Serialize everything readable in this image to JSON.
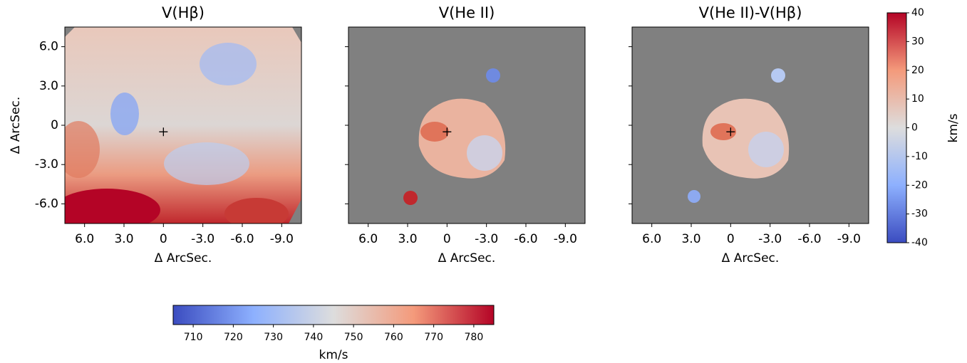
{
  "chart_data": [
    {
      "type": "heatmap",
      "title": "V(Hβ)",
      "xlabel": "Δ ArcSec.",
      "ylabel": "Δ ArcSec.",
      "xlim": [
        7.5,
        -10.5
      ],
      "ylim": [
        -7.5,
        7.5
      ],
      "xticks": [
        {
          "value": 6,
          "label": "6.0"
        },
        {
          "value": 3,
          "label": "3.0"
        },
        0,
        {
          "value": -3,
          "label": "-3.0"
        },
        {
          "value": -6,
          "label": "-6.0"
        },
        {
          "value": -9,
          "label": "-9.0"
        }
      ],
      "yticks": [
        {
          "value": 6,
          "label": "6.0"
        },
        {
          "value": 3,
          "label": "3.0"
        },
        0,
        {
          "value": -3,
          "label": "-3.0"
        },
        {
          "value": -6,
          "label": "-6.0"
        }
      ]
    },
    {
      "type": "heatmap",
      "title": "V(He II)",
      "xlabel": "Δ ArcSec.",
      "xlim": [
        7.5,
        -10.5
      ],
      "ylim": [
        -7.5,
        7.5
      ],
      "xticks": [
        {
          "value": 6,
          "label": "6.0"
        },
        {
          "value": 3,
          "label": "3.0"
        },
        0,
        {
          "value": -3,
          "label": "-3.0"
        },
        {
          "value": -6,
          "label": "-6.0"
        },
        {
          "value": -9,
          "label": "-9.0"
        }
      ]
    },
    {
      "type": "heatmap",
      "title": "V(He II)-V(Hβ)",
      "xlabel": "Δ ArcSec.",
      "xlim": [
        7.5,
        -10.5
      ],
      "ylim": [
        -7.5,
        7.5
      ],
      "xticks": [
        {
          "value": 6,
          "label": "6.0"
        },
        {
          "value": 3,
          "label": "3.0"
        },
        0,
        {
          "value": -3,
          "label": "-3.0"
        },
        {
          "value": -6,
          "label": "-6.0"
        },
        {
          "value": -9,
          "label": "-9.0"
        }
      ]
    }
  ],
  "colorbars": [
    {
      "label": "km/s",
      "lim": [
        -40,
        40
      ],
      "ticks": [
        40,
        30,
        20,
        10,
        0,
        -10,
        -20,
        -30,
        -40
      ]
    },
    {
      "label": "km/s",
      "lim": [
        705,
        785
      ],
      "ticks": [
        710,
        720,
        730,
        740,
        750,
        760,
        770,
        780
      ]
    }
  ]
}
